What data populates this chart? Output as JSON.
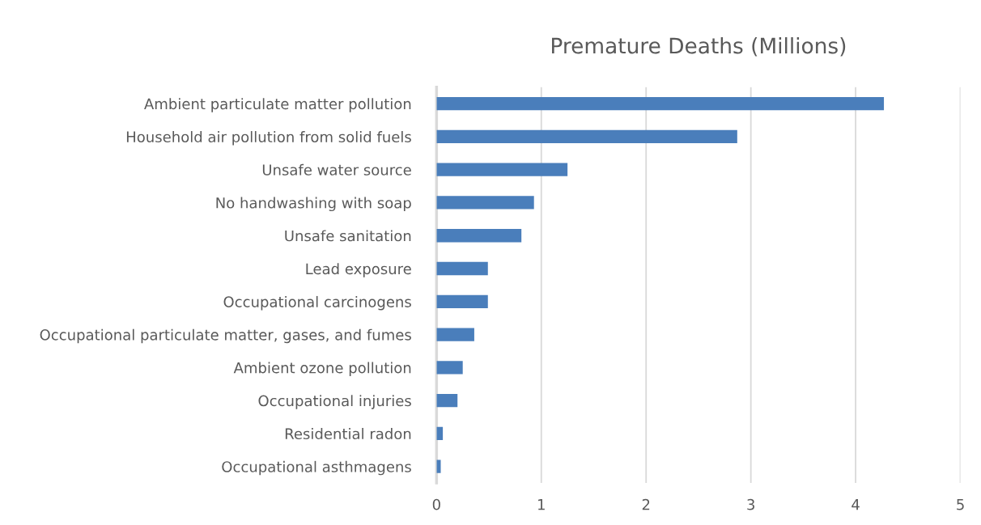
{
  "chart_data": {
    "type": "bar",
    "orientation": "horizontal",
    "title": "Premature Deaths (Millions)",
    "categories": [
      "Ambient particulate matter pollution",
      "Household air pollution from solid fuels",
      "Unsafe water source",
      "No handwashing with soap",
      "Unsafe sanitation",
      "Lead exposure",
      "Occupational carcinogens",
      "Occupational particulate matter, gases, and fumes",
      "Ambient ozone pollution",
      "Occupational injuries",
      "Residential radon",
      "Occupational asthmagens"
    ],
    "values": [
      4.27,
      2.87,
      1.25,
      0.93,
      0.81,
      0.49,
      0.49,
      0.36,
      0.25,
      0.2,
      0.06,
      0.04
    ],
    "color": "#4a7ebb",
    "xlim": [
      0,
      5
    ],
    "xticks": [
      0,
      1,
      2,
      3,
      4,
      5
    ],
    "grid": "x"
  }
}
